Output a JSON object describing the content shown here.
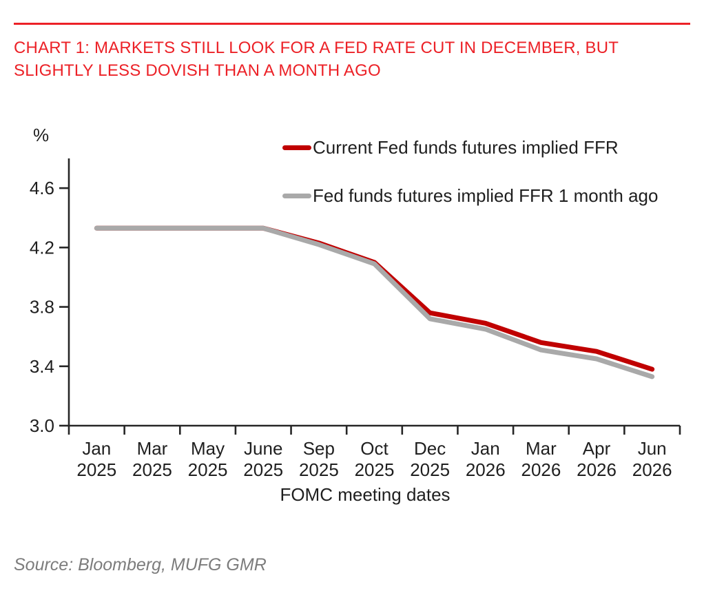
{
  "header": {
    "title_line1": "CHART 1: MARKETS STILL LOOK FOR A FED RATE CUT IN DECEMBER, BUT",
    "title_line2": "SLIGHTLY LESS DOVISH THAN A MONTH AGO"
  },
  "footer": {
    "source": "Source: Bloomberg, MUFG GMR"
  },
  "colors": {
    "accent_red": "#ec2127",
    "current_line": "#c00000",
    "month_ago_line": "#a9a9a9",
    "axis": "#262626",
    "label_text": "#1f1f1f",
    "source_text": "#7c7c7c"
  },
  "chart_data": {
    "type": "line",
    "title": "CHART 1: MARKETS STILL LOOK FOR A FED RATE CUT IN DECEMBER, BUT SLIGHTLY LESS DOVISH THAN A MONTH AGO",
    "unit_label": "%",
    "xlabel": "FOMC meeting dates",
    "grid": false,
    "legend_position": "top-right-inside",
    "ylim": [
      3.0,
      4.8
    ],
    "yticks": [
      4.6,
      4.2,
      3.8,
      3.4,
      3.0
    ],
    "x_tick_months": [
      "Jan",
      "Mar",
      "May",
      "June",
      "Sep",
      "Oct",
      "Dec",
      "Jan",
      "Mar",
      "Apr",
      "Jun"
    ],
    "x_tick_years": [
      "2025",
      "2025",
      "2025",
      "2025",
      "2025",
      "2025",
      "2025",
      "2026",
      "2026",
      "2026",
      "2026"
    ],
    "series": [
      {
        "name": "Current Fed funds futures implied FFR",
        "color": "#c00000",
        "values": [
          4.33,
          4.33,
          4.33,
          4.33,
          4.23,
          4.1,
          3.76,
          3.69,
          3.56,
          3.5,
          3.38
        ]
      },
      {
        "name": "Fed funds futures implied FFR 1 month ago",
        "color": "#a9a9a9",
        "values": [
          4.33,
          4.33,
          4.33,
          4.33,
          4.22,
          4.09,
          3.72,
          3.65,
          3.51,
          3.45,
          3.33
        ]
      }
    ]
  }
}
